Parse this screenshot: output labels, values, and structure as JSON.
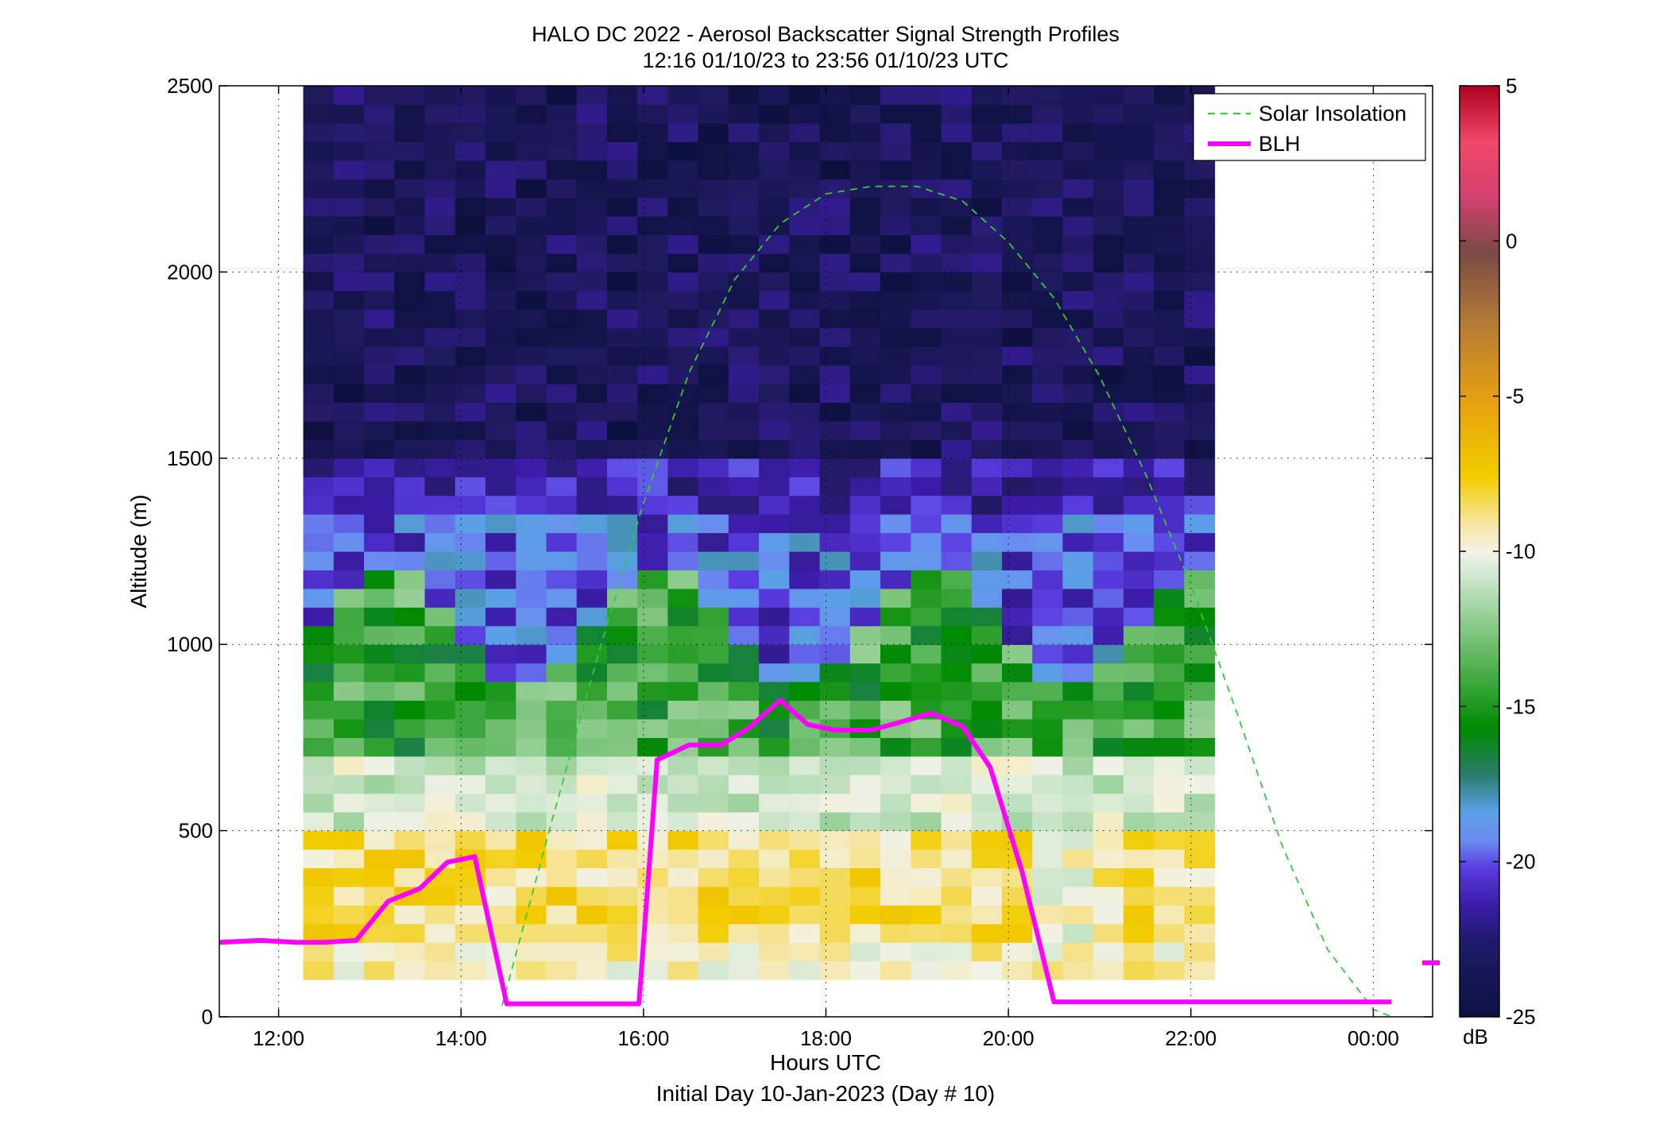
{
  "chart_data": {
    "type": "heatmap",
    "title": "HALO DC 2022 - Aerosol Backscatter Signal Strength Profiles",
    "subtitle": "12:16 01/10/23 to 23:56 01/10/23  UTC",
    "xlabel": "Hours UTC",
    "xlabel2": "Initial Day 10-Jan-2023 (Day # 10)",
    "ylabel": "Altitude (m)",
    "xlim": [
      11.35,
      24.65
    ],
    "ylim": [
      0,
      2500
    ],
    "x_ticks": [
      12,
      14,
      16,
      18,
      20,
      22,
      24
    ],
    "x_tick_labels": [
      "12:00",
      "14:00",
      "16:00",
      "18:00",
      "20:00",
      "22:00",
      "00:00"
    ],
    "y_ticks": [
      0,
      500,
      1000,
      1500,
      2000,
      2500
    ],
    "y_tick_labels": [
      "0",
      "500",
      "1000",
      "1500",
      "2000",
      "2500"
    ],
    "grid": true,
    "legend_position": "top-right",
    "colorbar": {
      "label": "dB",
      "min": -25,
      "max": 5,
      "ticks": [
        5,
        0,
        -5,
        -10,
        -15,
        -20,
        -25
      ],
      "tick_labels": [
        "5",
        "0",
        "-5",
        "-10",
        "-15",
        "-20",
        "-25"
      ]
    },
    "heatmap": {
      "x_start": 12.27,
      "x_step": 0.333,
      "columns": 30,
      "y_bins_m": [
        100,
        150,
        200,
        250,
        300,
        350,
        400,
        450,
        500,
        550,
        600,
        650,
        700,
        750,
        800,
        850,
        900,
        950,
        1000,
        1050,
        1100,
        1150,
        1200,
        1250,
        1300,
        1350,
        1400,
        1450,
        1500,
        1550,
        1600,
        1650,
        1700,
        1750,
        1800,
        1850,
        1900,
        1950,
        2000,
        2050,
        2100,
        2150,
        2200,
        2250,
        2300,
        2350,
        2400,
        2450,
        2500
      ],
      "bins_m": [
        [
          0,
          500,
          1000,
          1500,
          2000,
          2500
        ],
        [
          -8,
          -10,
          -14,
          -17,
          -19,
          -23,
          -24
        ]
      ]
    },
    "series": [
      {
        "name": "Solar Insolation",
        "style": "dashed",
        "color": "#33cc33",
        "x": [
          14.45,
          15.0,
          15.5,
          16.0,
          16.5,
          17.0,
          17.5,
          18.0,
          18.5,
          19.0,
          19.5,
          20.0,
          20.5,
          21.0,
          21.5,
          22.0,
          22.5,
          23.0,
          23.5,
          24.0,
          24.2
        ],
        "y": [
          30,
          530,
          970,
          1380,
          1730,
          1980,
          2130,
          2210,
          2230,
          2230,
          2190,
          2080,
          1930,
          1720,
          1460,
          1160,
          820,
          460,
          180,
          20,
          0
        ]
      },
      {
        "name": "BLH",
        "style": "solid",
        "color": "#ff00ff",
        "x": [
          11.35,
          11.8,
          12.2,
          12.5,
          12.85,
          13.2,
          13.55,
          13.85,
          14.15,
          14.5,
          14.8,
          15.2,
          15.6,
          15.95,
          16.15,
          16.5,
          16.85,
          17.15,
          17.5,
          17.8,
          18.1,
          18.5,
          18.8,
          19.15,
          19.5,
          19.8,
          20.15,
          20.5,
          21.0,
          21.5,
          22.0,
          22.5,
          23.0,
          23.5,
          24.0,
          24.2
        ],
        "y": [
          200,
          205,
          200,
          200,
          205,
          310,
          345,
          415,
          430,
          35,
          35,
          35,
          35,
          35,
          690,
          730,
          730,
          775,
          850,
          785,
          770,
          770,
          790,
          815,
          780,
          670,
          390,
          40,
          40,
          40,
          40,
          40,
          40,
          40,
          40,
          40
        ]
      }
    ],
    "annotations": [
      {
        "text": "BLH marker beyond plot",
        "x": 24.65,
        "y": 145
      }
    ]
  }
}
